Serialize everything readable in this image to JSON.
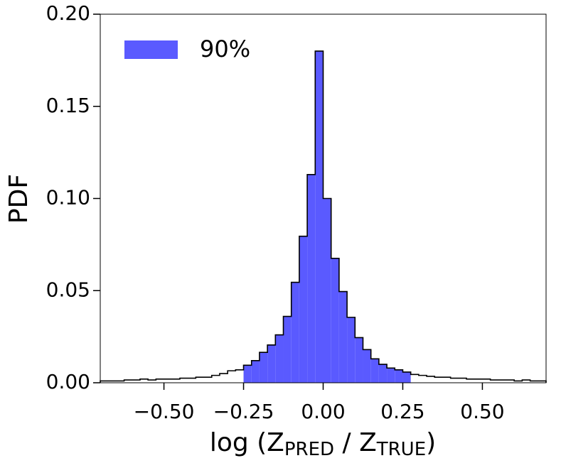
{
  "chart_data": {
    "type": "histogram",
    "ylabel": "PDF",
    "xlabel": [
      "log (Z",
      "PRED",
      " / Z",
      "TRUE",
      ")"
    ],
    "bins": [
      -0.7,
      -0.675,
      -0.65,
      -0.625,
      -0.6,
      -0.575,
      -0.55,
      -0.525,
      -0.5,
      -0.475,
      -0.45,
      -0.425,
      -0.4,
      -0.375,
      -0.35,
      -0.325,
      -0.3,
      -0.275,
      -0.25,
      -0.225,
      -0.2,
      -0.175,
      -0.15,
      -0.125,
      -0.1,
      -0.075,
      -0.05,
      -0.025,
      0,
      0.025,
      0.05,
      0.075,
      0.1,
      0.125,
      0.15,
      0.175,
      0.2,
      0.225,
      0.25,
      0.275,
      0.3,
      0.325,
      0.35,
      0.375,
      0.4,
      0.425,
      0.45,
      0.475,
      0.5,
      0.525,
      0.55,
      0.575,
      0.6,
      0.625,
      0.65,
      0.675,
      0.7
    ],
    "values": [
      0.001,
      0.001,
      0.001,
      0.0015,
      0.0015,
      0.002,
      0.0015,
      0.002,
      0.002,
      0.002,
      0.0025,
      0.0025,
      0.003,
      0.003,
      0.004,
      0.005,
      0.0065,
      0.007,
      0.0095,
      0.012,
      0.0165,
      0.0205,
      0.026,
      0.036,
      0.0545,
      0.0795,
      0.113,
      0.18,
      0.1,
      0.0675,
      0.0495,
      0.0355,
      0.0245,
      0.018,
      0.013,
      0.01,
      0.008,
      0.007,
      0.0058,
      0.0045,
      0.004,
      0.0035,
      0.003,
      0.003,
      0.0025,
      0.0025,
      0.002,
      0.002,
      0.002,
      0.0015,
      0.0015,
      0.0015,
      0.001,
      0.0015,
      0.001,
      0.001
    ],
    "highlight": {
      "name": "90%",
      "color": "#5a5aff",
      "range": [
        -0.25,
        0.275
      ]
    },
    "xlim": [
      -0.7,
      0.7
    ],
    "ylim": [
      0,
      0.2
    ],
    "xticks": [
      {
        "value": -0.5,
        "label": "−0.50"
      },
      {
        "value": -0.25,
        "label": "−0.25"
      },
      {
        "value": 0,
        "label": "0.00"
      },
      {
        "value": 0.25,
        "label": "0.25"
      },
      {
        "value": 0.5,
        "label": "0.50"
      }
    ],
    "yticks": [
      {
        "value": 0,
        "label": "0.00"
      },
      {
        "value": 0.05,
        "label": "0.05"
      },
      {
        "value": 0.1,
        "label": "0.10"
      },
      {
        "value": 0.15,
        "label": "0.15"
      },
      {
        "value": 0.2,
        "label": "0.20"
      }
    ],
    "legend": "upper left"
  }
}
